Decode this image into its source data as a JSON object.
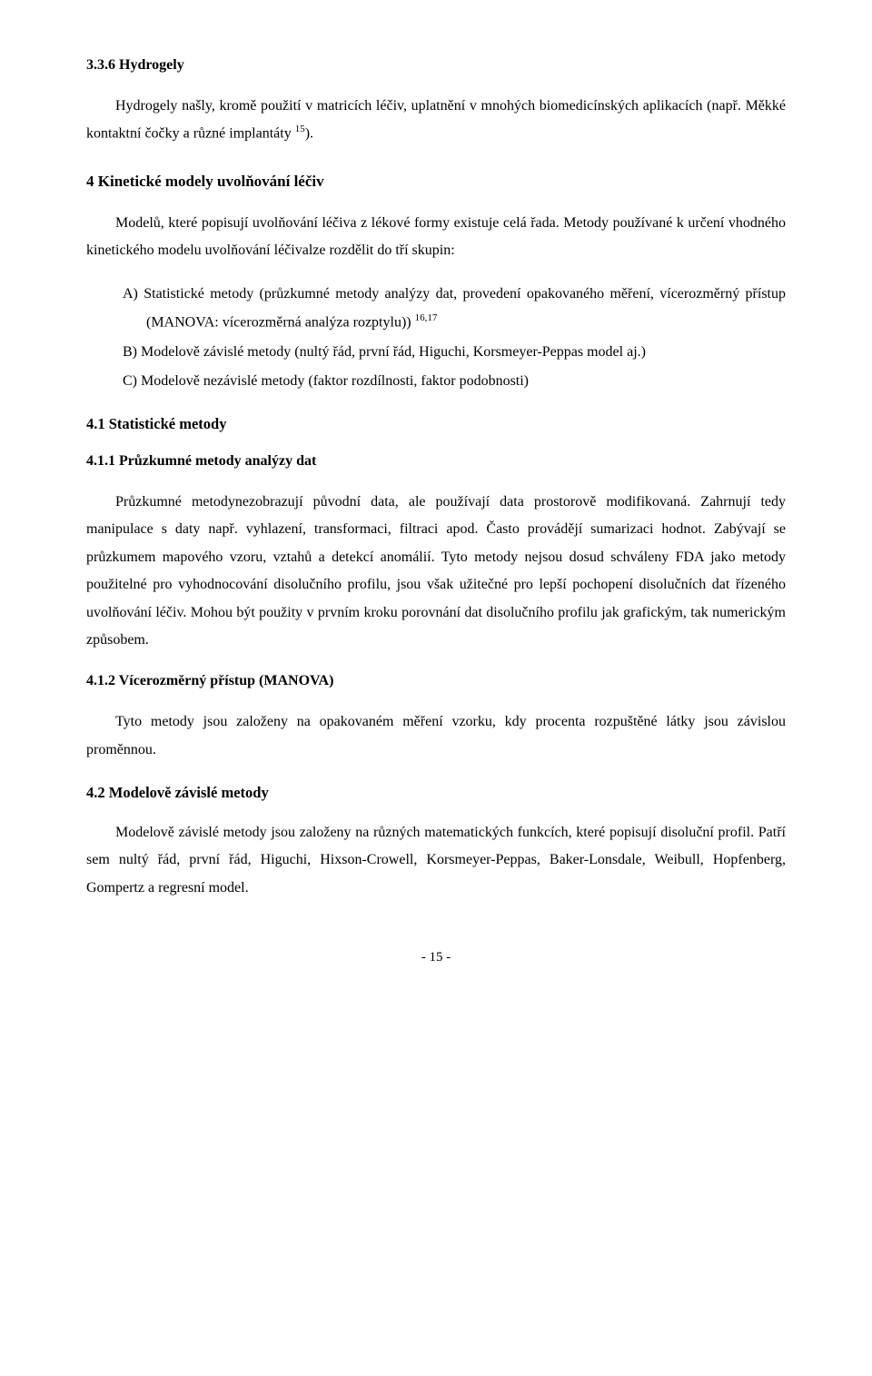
{
  "section_336": {
    "heading": "3.3.6   Hydrogely",
    "para": "Hydrogely našly, kromě použití v matricích léčiv, uplatnění v mnohých biomedicínských aplikacích (např. Měkké kontaktní čočky a různé implantáty ",
    "sup": "15",
    "para_end": ")."
  },
  "section_4": {
    "heading": "4    Kinetické modely uvolňování léčiv",
    "para": "Modelů, které popisují uvolňování léčiva z lékové formy existuje celá řada. Metody používané k určení vhodného kinetického modelu uvolňování léčivalze rozdělit do tří skupin:",
    "list": {
      "a": "A) Statistické metody (průzkumné metody analýzy dat, provedení opakovaného měření, vícerozměrný přístup (MANOVA: vícerozměrná analýza rozptylu)) ",
      "a_sup": "16,17",
      "b": "B) Modelově závislé metody (nultý řád, první řád, Higuchi, Korsmeyer-Peppas model aj.)",
      "c": "C) Modelově nezávislé metody (faktor rozdílnosti, faktor podobnosti)"
    }
  },
  "section_41": {
    "heading": "4.1   Statistické metody"
  },
  "section_411": {
    "heading": "4.1.1   Průzkumné metody analýzy dat",
    "para": "Průzkumné metodynezobrazují původní data, ale používají data prostorově modifikovaná. Zahrnují tedy manipulace s daty např. vyhlazení, transformaci, filtraci apod. Často provádějí sumarizaci hodnot. Zabývají se průzkumem mapového vzoru, vztahů a detekcí anomálií. Tyto metody nejsou dosud schváleny FDA jako metody použitelné pro vyhodnocování disolučního profilu, jsou však užitečné pro lepší pochopení disolučních dat řízeného uvolňování léčiv. Mohou být použity v prvním kroku porovnání dat disolučního profilu jak grafickým, tak numerickým způsobem."
  },
  "section_412": {
    "heading": "4.1.2   Vícerozměrný přístup (MANOVA)",
    "para": "Tyto metody jsou založeny na opakovaném měření vzorku, kdy procenta rozpuštěné látky jsou závislou proměnnou."
  },
  "section_42": {
    "heading": "4.2   Modelově závislé metody",
    "para": "Modelově závislé metody jsou založeny na různých matematických funkcích, které popisují disoluční profil. Patří sem nultý řád, první řád, Higuchi, Hixson-Crowell, Korsmeyer-Peppas, Baker-Lonsdale, Weibull, Hopfenberg, Gompertz a regresní model."
  },
  "page_number": "- 15 -"
}
